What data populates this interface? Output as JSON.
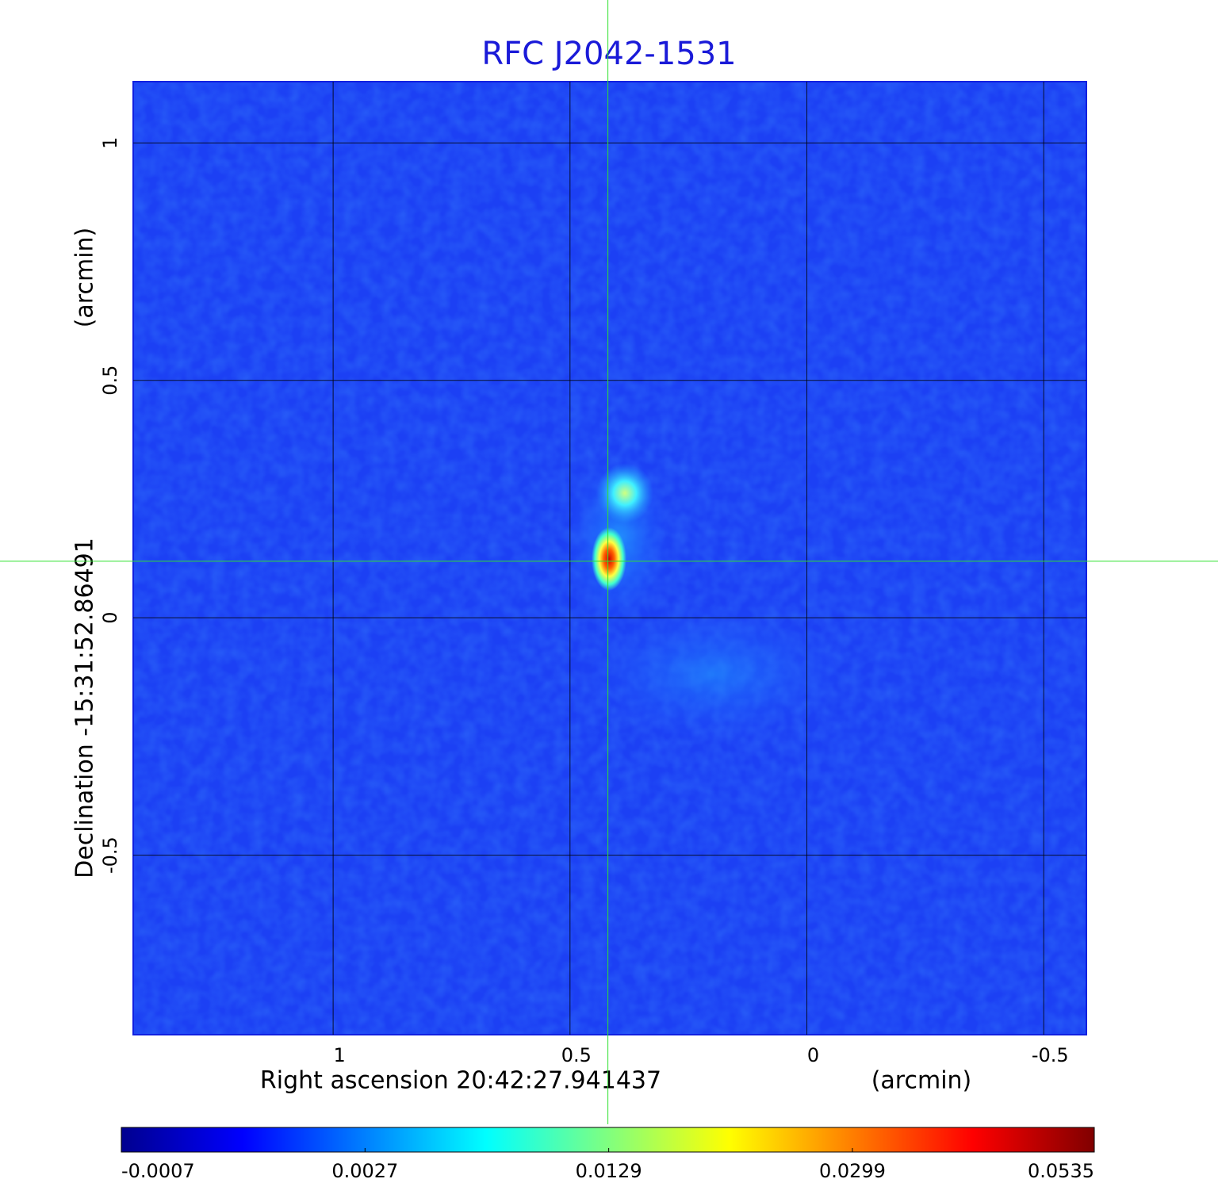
{
  "chart_data": {
    "type": "image",
    "title": "RFC J2042-1531",
    "x_label": "Right ascension  20:42:27.941437",
    "x_unit": "(arcmin)",
    "y_label": "Declination  -15:31:52.86491",
    "y_unit": "(arcmin)",
    "xlim": [
      1.422,
      -0.59
    ],
    "ylim": [
      -0.878,
      1.129
    ],
    "xticks": [
      1.0,
      0.5,
      0.0,
      -0.5
    ],
    "yticks": [
      1.0,
      0.5,
      0.0,
      -0.5
    ],
    "grid": true,
    "crosshair": [
      0.42,
      0.119
    ],
    "colormap": "jet",
    "colorbar_scale": "sqrt",
    "clim": [
      -0.0007,
      0.0535
    ],
    "colorbar_ticks": [
      -0.0007,
      0.0027,
      0.0129,
      0.0299,
      0.0535
    ]
  }
}
